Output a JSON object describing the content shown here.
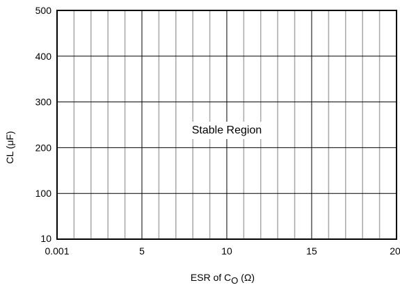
{
  "chart_data": {
    "type": "scatter",
    "title": "",
    "xlabel": "ESR of C",
    "xlabel_subscript": "O",
    "xlabel_suffix": " (Ω)",
    "ylabel": "CL (μF)",
    "xlim": [
      0,
      20
    ],
    "ylim": [
      0,
      500
    ],
    "x_ticks": [
      {
        "value": 0,
        "label": "0.001"
      },
      {
        "value": 5,
        "label": "5"
      },
      {
        "value": 10,
        "label": "10"
      },
      {
        "value": 15,
        "label": "15"
      },
      {
        "value": 20,
        "label": "20"
      }
    ],
    "y_ticks": [
      {
        "value": 0,
        "label": "10"
      },
      {
        "value": 100,
        "label": "100"
      },
      {
        "value": 200,
        "label": "200"
      },
      {
        "value": 300,
        "label": "300"
      },
      {
        "value": 400,
        "label": "400"
      },
      {
        "value": 500,
        "label": "500"
      }
    ],
    "minor_x_step": 1,
    "grid": true,
    "series": [],
    "annotations": [
      {
        "text": "Stable Region",
        "x": 10,
        "y": 240
      }
    ]
  }
}
